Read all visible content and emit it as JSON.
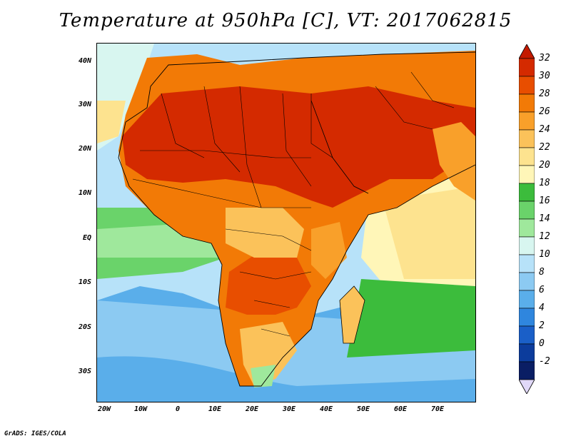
{
  "title": "Temperature at 950hPa [C], VT: 2017062815",
  "footer": "GrADS: IGES/COLA",
  "lat_labels": [
    "40N",
    "30N",
    "20N",
    "10N",
    "EQ",
    "10S",
    "20S",
    "30S"
  ],
  "lon_labels": [
    "20W",
    "10W",
    "0",
    "10E",
    "20E",
    "30E",
    "40E",
    "50E",
    "60E",
    "70E"
  ],
  "colorbar": {
    "labels": [
      "32",
      "30",
      "28",
      "26",
      "24",
      "22",
      "20",
      "18",
      "16",
      "14",
      "12",
      "10",
      "8",
      "6",
      "4",
      "2",
      "0",
      "-2"
    ],
    "colors_top_to_bottom": [
      "#d42a00",
      "#e84e00",
      "#f27a06",
      "#f9a02a",
      "#fbc25a",
      "#fde38f",
      "#fff6b8",
      "#3cbc3c",
      "#6ad36a",
      "#9fe89c",
      "#d8f6f0",
      "#b7e2f9",
      "#8ccaf2",
      "#5aaeea",
      "#2f86de",
      "#1a5fc8",
      "#0c3c9c",
      "#0a1e64"
    ],
    "max_triangle_color": "#c41a00",
    "min_triangle_color": "#e0d8f8"
  }
}
